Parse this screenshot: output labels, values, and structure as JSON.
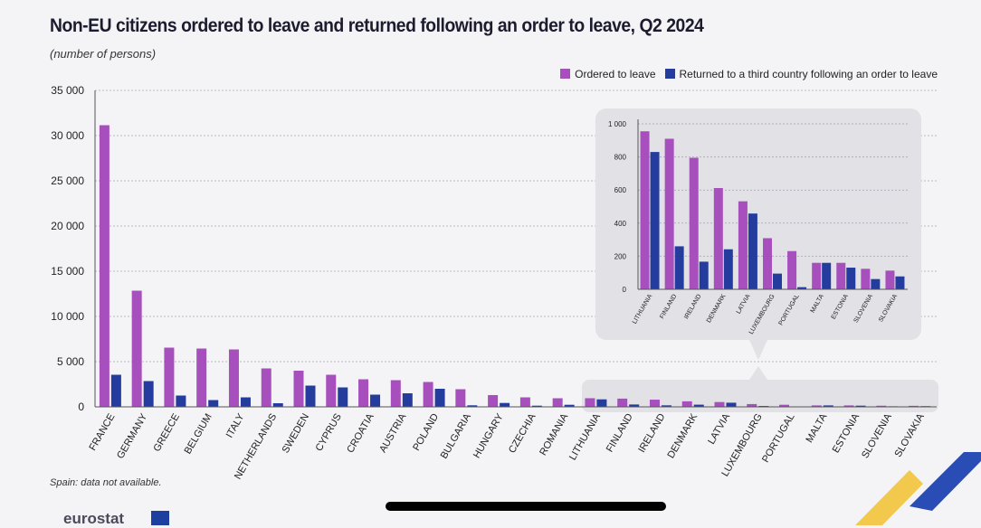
{
  "chart_data": {
    "type": "bar",
    "title": "Non-EU citizens ordered to leave and returned following an order to leave, Q2 2024",
    "subtitle": "(number of persons)",
    "legend": [
      "Ordered to leave",
      "Returned to a third country following an order to leave"
    ],
    "colors": [
      "#a64fbd",
      "#243c9e"
    ],
    "ylim": [
      0,
      35000
    ],
    "yticks": [
      0,
      5000,
      10000,
      15000,
      20000,
      25000,
      30000,
      35000
    ],
    "ytick_labels": [
      "0",
      "5 000",
      "10 000",
      "15 000",
      "20 000",
      "25 000",
      "30 000",
      "35 000"
    ],
    "categories": [
      "FRANCE",
      "GERMANY",
      "GREECE",
      "BELGIUM",
      "ITALY",
      "NETHERLANDS",
      "SWEDEN",
      "CYPRUS",
      "CROATIA",
      "AUSTRIA",
      "POLAND",
      "BULGARIA",
      "HUNGARY",
      "CZECHIA",
      "ROMANIA",
      "LITHUANIA",
      "FINLAND",
      "IRELAND",
      "DENMARK",
      "LATVIA",
      "LUXEMBOURG",
      "PORTUGAL",
      "MALTA",
      "ESTONIA",
      "SLOVENIA",
      "SLOVAKIA"
    ],
    "series": [
      {
        "name": "Ordered to leave",
        "values": [
          31150,
          12850,
          6550,
          6450,
          6350,
          4250,
          4000,
          3550,
          3050,
          2950,
          2750,
          1950,
          1300,
          1050,
          950,
          955,
          910,
          795,
          612,
          532,
          309,
          231,
          160,
          160,
          124,
          113
        ]
      },
      {
        "name": "Returned to a third country following an order to leave",
        "values": [
          3550,
          2850,
          1250,
          750,
          1050,
          400,
          2350,
          2150,
          1350,
          1500,
          2000,
          170,
          430,
          130,
          230,
          830,
          260,
          167,
          242,
          458,
          95,
          13,
          160,
          131,
          62,
          78
        ]
      }
    ],
    "inset": {
      "ylim": [
        0,
        1000
      ],
      "yticks": [
        0,
        200,
        400,
        600,
        800,
        1000
      ],
      "ytick_labels": [
        "0",
        "200",
        "400",
        "600",
        "800",
        "1 000"
      ],
      "from_index": 15
    },
    "footnote": "Spain: data not available."
  },
  "brand": "eurostat"
}
